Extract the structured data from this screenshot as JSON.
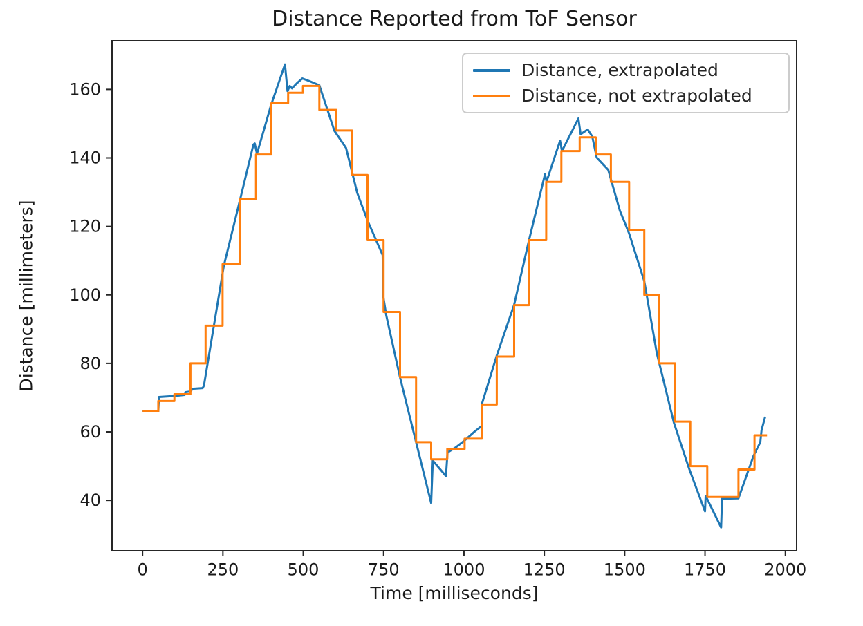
{
  "title": "Distance Reported from ToF Sensor",
  "x_axis": {
    "label": "Time [milliseconds]"
  },
  "y_axis": {
    "label": "Distance [millimeters]"
  },
  "legend": {
    "position": "upper right",
    "entries": [
      {
        "label": "Distance, extrapolated",
        "color": "#1f77b4"
      },
      {
        "label": "Distance, not extrapolated",
        "color": "#ff7f0e"
      }
    ]
  },
  "colors": {
    "background": "#ffffff",
    "spine": "#262626",
    "text": "#1a1a1a",
    "legend_border": "#cccccc",
    "series_blue": "#1f77b4",
    "series_orange": "#ff7f0e"
  },
  "chart_data": {
    "type": "line",
    "title": "Distance Reported from ToF Sensor",
    "xlabel": "Time [milliseconds]",
    "ylabel": "Distance [millimeters]",
    "xlim": [
      -95,
      2035
    ],
    "ylim": [
      25.3,
      174.2
    ],
    "x_ticks": [
      0,
      250,
      500,
      750,
      1000,
      1250,
      1500,
      1750,
      2000
    ],
    "y_ticks": [
      40,
      60,
      80,
      100,
      120,
      140,
      160
    ],
    "grid": false,
    "legend_position": "upper right",
    "series": [
      {
        "name": "Distance, extrapolated",
        "color": "#1f77b4",
        "style": "line",
        "linewidth": 3,
        "points": [
          [
            0,
            66
          ],
          [
            49,
            66
          ],
          [
            51,
            70.2
          ],
          [
            100,
            70.5
          ],
          [
            131,
            70.8
          ],
          [
            134,
            71.6
          ],
          [
            150,
            71.8
          ],
          [
            155,
            72.6
          ],
          [
            187,
            72.8
          ],
          [
            191,
            73.5
          ],
          [
            253,
            108.5
          ],
          [
            300,
            126.5
          ],
          [
            345,
            143.9
          ],
          [
            349,
            144.2
          ],
          [
            356,
            141.2
          ],
          [
            400,
            155.5
          ],
          [
            443,
            167.3
          ],
          [
            451,
            159.5
          ],
          [
            458,
            161
          ],
          [
            465,
            160.3
          ],
          [
            480,
            161.8
          ],
          [
            497,
            163.2
          ],
          [
            520,
            162.4
          ],
          [
            550,
            161.2
          ],
          [
            597,
            147.9
          ],
          [
            633,
            142.9
          ],
          [
            668,
            129.8
          ],
          [
            700,
            121.7
          ],
          [
            747,
            111.6
          ],
          [
            749,
            99.5
          ],
          [
            758,
            94.1
          ],
          [
            801,
            75.9
          ],
          [
            851,
            57.0
          ],
          [
            898,
            39.2
          ],
          [
            903,
            51.6
          ],
          [
            944,
            47.1
          ],
          [
            949,
            54.0
          ],
          [
            975,
            55.5
          ],
          [
            1002,
            57.5
          ],
          [
            1032,
            60.0
          ],
          [
            1055,
            61.7
          ],
          [
            1057,
            68.5
          ],
          [
            1102,
            82.3
          ],
          [
            1156,
            97.1
          ],
          [
            1202,
            115.8
          ],
          [
            1252,
            135.2
          ],
          [
            1257,
            133.1
          ],
          [
            1299,
            145.0
          ],
          [
            1305,
            142.0
          ],
          [
            1356,
            151.5
          ],
          [
            1363,
            146.9
          ],
          [
            1385,
            148.3
          ],
          [
            1399,
            146.3
          ],
          [
            1413,
            140.1
          ],
          [
            1449,
            136.5
          ],
          [
            1485,
            124.6
          ],
          [
            1514,
            117.9
          ],
          [
            1561,
            104.0
          ],
          [
            1600,
            83.0
          ],
          [
            1653,
            62.7
          ],
          [
            1700,
            49.4
          ],
          [
            1750,
            36.8
          ],
          [
            1752,
            41.3
          ],
          [
            1800,
            32.1
          ],
          [
            1803,
            40.5
          ],
          [
            1854,
            40.6
          ],
          [
            1901,
            53.0
          ],
          [
            1922,
            57.0
          ],
          [
            1926,
            60.5
          ],
          [
            1937,
            64.4
          ]
        ]
      },
      {
        "name": "Distance, not extrapolated",
        "color": "#ff7f0e",
        "style": "step-post",
        "linewidth": 3,
        "end_time": 1943,
        "points": [
          [
            0,
            66
          ],
          [
            49,
            69
          ],
          [
            99,
            71
          ],
          [
            149,
            80
          ],
          [
            196,
            91
          ],
          [
            249,
            109
          ],
          [
            303,
            128
          ],
          [
            353,
            141
          ],
          [
            401,
            156
          ],
          [
            453,
            159
          ],
          [
            499,
            161
          ],
          [
            550,
            154
          ],
          [
            603,
            148
          ],
          [
            652,
            135
          ],
          [
            700,
            116
          ],
          [
            750,
            95
          ],
          [
            801,
            76
          ],
          [
            851,
            57
          ],
          [
            898,
            52
          ],
          [
            948,
            55
          ],
          [
            1002,
            58
          ],
          [
            1056,
            68
          ],
          [
            1102,
            82
          ],
          [
            1156,
            97
          ],
          [
            1202,
            116
          ],
          [
            1256,
            133
          ],
          [
            1303,
            142
          ],
          [
            1360,
            146
          ],
          [
            1410,
            141
          ],
          [
            1457,
            133
          ],
          [
            1514,
            119
          ],
          [
            1561,
            100
          ],
          [
            1608,
            80
          ],
          [
            1657,
            63
          ],
          [
            1704,
            50
          ],
          [
            1757,
            41
          ],
          [
            1854,
            49
          ],
          [
            1904,
            59
          ]
        ]
      }
    ]
  },
  "plot_style": {
    "tick_length": 8,
    "spine_width": 2
  }
}
